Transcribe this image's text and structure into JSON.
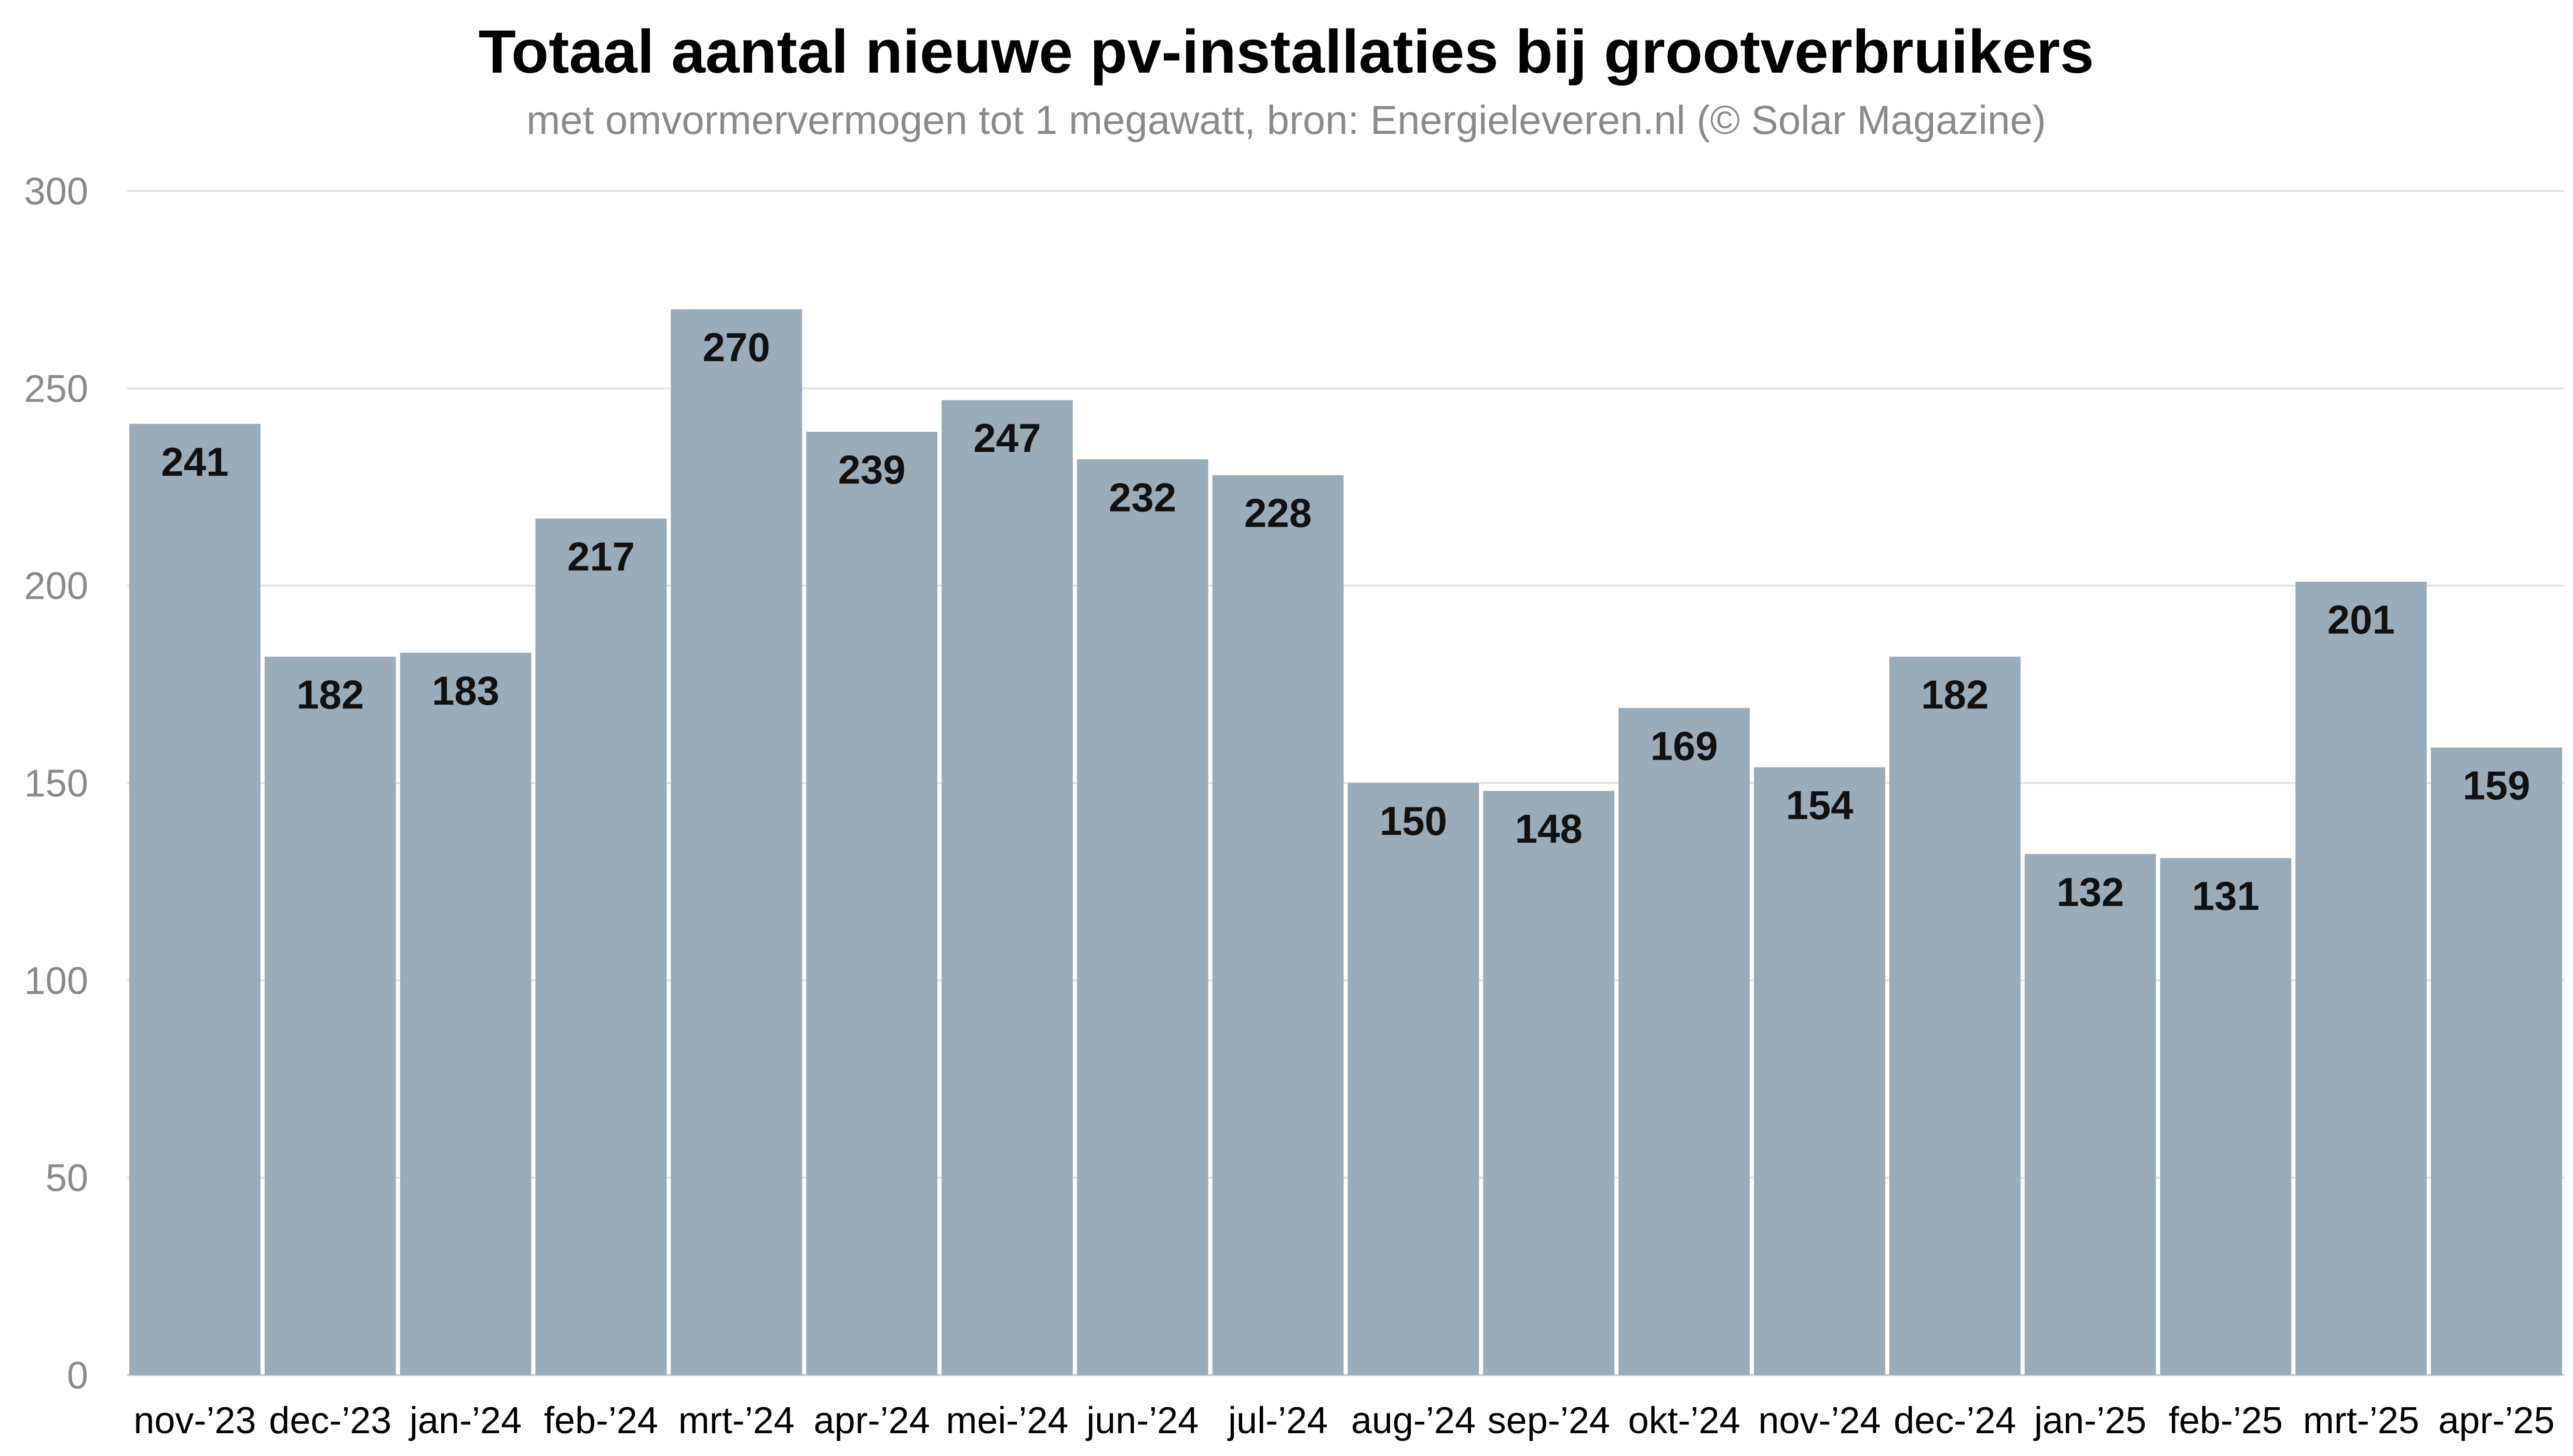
{
  "chart_data": {
    "type": "bar",
    "title": "Totaal aantal nieuwe pv-installaties bij grootverbruikers",
    "subtitle": "met omvormervermogen tot 1 megawatt, bron: Energieleveren.nl (© Solar Magazine)",
    "xlabel": "",
    "ylabel": "",
    "ylim": [
      0,
      300
    ],
    "yticks": [
      0,
      50,
      100,
      150,
      200,
      250,
      300
    ],
    "grid": true,
    "categories": [
      "nov-’23",
      "dec-’23",
      "jan-’24",
      "feb-’24",
      "mrt-’24",
      "apr-’24",
      "mei-’24",
      "jun-’24",
      "jul-’24",
      "aug-’24",
      "sep-’24",
      "okt-’24",
      "nov-’24",
      "dec-’24",
      "jan-’25",
      "feb-’25",
      "mrt-’25",
      "apr-’25"
    ],
    "values": [
      241,
      182,
      183,
      217,
      270,
      239,
      247,
      232,
      228,
      150,
      148,
      169,
      154,
      182,
      132,
      131,
      201,
      159
    ],
    "colors": {
      "bar": "#9aabba",
      "grid": "#e3e3e3",
      "axis": "#cfcfcf"
    }
  }
}
